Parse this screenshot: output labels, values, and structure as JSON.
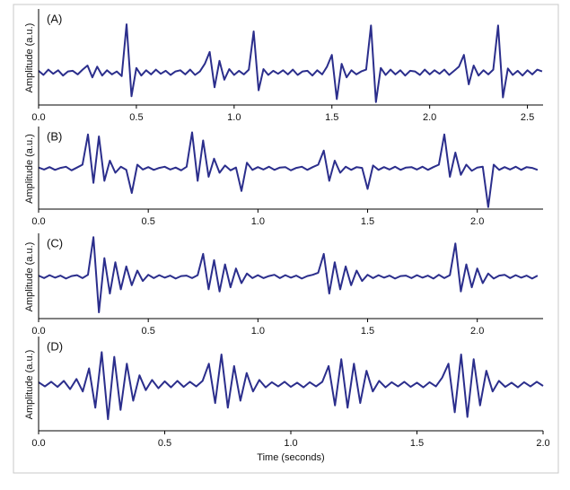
{
  "chart_data": [
    {
      "type": "line",
      "title": "(A)",
      "ylabel": "Amplitude (a.u.)",
      "color": "#2b2e8c",
      "xlim": [
        0,
        2.58
      ],
      "ylim": [
        -0.55,
        1.05
      ],
      "xticks": [
        {
          "value": 0,
          "label": "0.0"
        },
        0.5,
        {
          "value": 1,
          "label": "1.0"
        },
        1.5,
        {
          "value": 2,
          "label": "2.0"
        },
        2.5
      ],
      "x": [
        0,
        0.025,
        0.05,
        0.075,
        0.1,
        0.125,
        0.15,
        0.175,
        0.2,
        0.225,
        0.25,
        0.275,
        0.3,
        0.325,
        0.35,
        0.375,
        0.4,
        0.425,
        0.45,
        0.475,
        0.5,
        0.525,
        0.55,
        0.575,
        0.6,
        0.625,
        0.65,
        0.675,
        0.7,
        0.725,
        0.75,
        0.775,
        0.8,
        0.825,
        0.85,
        0.875,
        0.9,
        0.925,
        0.95,
        0.975,
        1,
        1.025,
        1.05,
        1.075,
        1.1,
        1.125,
        1.15,
        1.175,
        1.2,
        1.225,
        1.25,
        1.275,
        1.3,
        1.325,
        1.35,
        1.375,
        1.4,
        1.425,
        1.45,
        1.475,
        1.5,
        1.525,
        1.55,
        1.575,
        1.6,
        1.625,
        1.65,
        1.675,
        1.7,
        1.725,
        1.75,
        1.775,
        1.8,
        1.825,
        1.85,
        1.875,
        1.9,
        1.925,
        1.95,
        1.975,
        2,
        2.025,
        2.05,
        2.075,
        2.1,
        2.125,
        2.15,
        2.175,
        2.2,
        2.225,
        2.25,
        2.275,
        2.3,
        2.325,
        2.35,
        2.375,
        2.4,
        2.425,
        2.45,
        2.475,
        2.5,
        2.525,
        2.55,
        2.575
      ],
      "values": [
        0.03,
        -0.04,
        0.05,
        -0.02,
        0.04,
        -0.05,
        0.02,
        0.03,
        -0.03,
        0.05,
        0.12,
        -0.08,
        0.1,
        -0.05,
        0.04,
        -0.03,
        0.02,
        -0.06,
        0.82,
        -0.4,
        0.08,
        -0.05,
        0.04,
        -0.03,
        0.05,
        -0.02,
        0.03,
        -0.04,
        0.02,
        0.04,
        -0.03,
        0.05,
        -0.04,
        0.02,
        0.15,
        0.35,
        -0.25,
        0.2,
        -0.12,
        0.06,
        -0.04,
        0.03,
        -0.03,
        0.05,
        0.7,
        -0.3,
        0.06,
        -0.04,
        0.03,
        -0.02,
        0.04,
        -0.03,
        0.05,
        -0.04,
        0.02,
        0.03,
        -0.05,
        0.04,
        -0.03,
        0.1,
        0.3,
        -0.45,
        0.15,
        -0.08,
        0.04,
        -0.03,
        0.02,
        0.05,
        0.8,
        -0.5,
        0.08,
        -0.04,
        0.05,
        -0.03,
        0.04,
        -0.05,
        0.03,
        0.02,
        -0.04,
        0.05,
        -0.03,
        0.04,
        -0.02,
        0.05,
        -0.04,
        0.03,
        0.1,
        0.3,
        -0.2,
        0.12,
        -0.05,
        0.04,
        -0.03,
        0.05,
        0.8,
        -0.42,
        0.07,
        -0.04,
        0.03,
        -0.05,
        0.04,
        -0.03,
        0.05,
        0.02
      ]
    },
    {
      "type": "line",
      "title": "(B)",
      "ylabel": "Amplitude (a.u.)",
      "color": "#2b2e8c",
      "xlim": [
        0,
        2.3
      ],
      "ylim": [
        -1,
        1
      ],
      "xticks": [
        {
          "value": 0,
          "label": "0.0"
        },
        0.5,
        {
          "value": 1,
          "label": "1.0"
        },
        1.5,
        {
          "value": 2,
          "label": "2.0"
        }
      ],
      "x": [
        0,
        0.025,
        0.05,
        0.075,
        0.1,
        0.125,
        0.15,
        0.175,
        0.2,
        0.225,
        0.25,
        0.275,
        0.3,
        0.325,
        0.35,
        0.375,
        0.4,
        0.425,
        0.45,
        0.475,
        0.5,
        0.525,
        0.55,
        0.575,
        0.6,
        0.625,
        0.65,
        0.675,
        0.7,
        0.725,
        0.75,
        0.775,
        0.8,
        0.825,
        0.85,
        0.875,
        0.9,
        0.925,
        0.95,
        0.975,
        1,
        1.025,
        1.05,
        1.075,
        1.1,
        1.125,
        1.15,
        1.175,
        1.2,
        1.225,
        1.25,
        1.275,
        1.3,
        1.325,
        1.35,
        1.375,
        1.4,
        1.425,
        1.45,
        1.475,
        1.5,
        1.525,
        1.55,
        1.575,
        1.6,
        1.625,
        1.65,
        1.675,
        1.7,
        1.725,
        1.75,
        1.775,
        1.8,
        1.825,
        1.85,
        1.875,
        1.9,
        1.925,
        1.95,
        1.975,
        2,
        2.025,
        2.05,
        2.075,
        2.1,
        2.125,
        2.15,
        2.175,
        2.2,
        2.225,
        2.25,
        2.275
      ],
      "values": [
        0.03,
        -0.02,
        0.04,
        -0.03,
        0.02,
        0.05,
        -0.04,
        0.03,
        0.1,
        0.85,
        -0.35,
        0.8,
        -0.3,
        0.2,
        -0.1,
        0.05,
        -0.03,
        -0.6,
        0.1,
        -0.02,
        0.04,
        -0.03,
        0.02,
        0.05,
        -0.02,
        0.03,
        -0.04,
        0.05,
        0.9,
        -0.3,
        0.7,
        -0.2,
        0.25,
        -0.1,
        0.08,
        -0.04,
        0.03,
        -0.55,
        0.15,
        -0.03,
        0.04,
        -0.02,
        0.05,
        -0.03,
        0.03,
        0.04,
        -0.04,
        0.02,
        0.05,
        -0.03,
        0.04,
        0.1,
        0.45,
        -0.3,
        0.2,
        -0.1,
        0.05,
        -0.03,
        0.04,
        0.02,
        -0.5,
        0.08,
        -0.03,
        0.04,
        -0.02,
        0.05,
        -0.03,
        0.03,
        0.04,
        -0.02,
        0.05,
        -0.03,
        0.04,
        0.1,
        0.85,
        -0.2,
        0.4,
        -0.15,
        0.1,
        -0.05,
        0.03,
        0.05,
        -0.95,
        0.1,
        -0.03,
        0.04,
        -0.02,
        0.05,
        -0.03,
        0.04,
        0.02,
        -0.03
      ]
    },
    {
      "type": "line",
      "title": "(C)",
      "ylabel": "Amplitude (a.u.)",
      "color": "#2b2e8c",
      "xlim": [
        0,
        2.3
      ],
      "ylim": [
        -1,
        1
      ],
      "xticks": [
        {
          "value": 0,
          "label": "0.0"
        },
        0.5,
        {
          "value": 1,
          "label": "1.0"
        },
        1.5,
        {
          "value": 2,
          "label": "2.0"
        }
      ],
      "x": [
        0,
        0.025,
        0.05,
        0.075,
        0.1,
        0.125,
        0.15,
        0.175,
        0.2,
        0.225,
        0.25,
        0.275,
        0.3,
        0.325,
        0.35,
        0.375,
        0.4,
        0.425,
        0.45,
        0.475,
        0.5,
        0.525,
        0.55,
        0.575,
        0.6,
        0.625,
        0.65,
        0.675,
        0.7,
        0.725,
        0.75,
        0.775,
        0.8,
        0.825,
        0.85,
        0.875,
        0.9,
        0.925,
        0.95,
        0.975,
        1,
        1.025,
        1.05,
        1.075,
        1.1,
        1.125,
        1.15,
        1.175,
        1.2,
        1.225,
        1.25,
        1.275,
        1.3,
        1.325,
        1.35,
        1.375,
        1.4,
        1.425,
        1.45,
        1.475,
        1.5,
        1.525,
        1.55,
        1.575,
        1.6,
        1.625,
        1.65,
        1.675,
        1.7,
        1.725,
        1.75,
        1.775,
        1.8,
        1.825,
        1.85,
        1.875,
        1.9,
        1.925,
        1.95,
        1.975,
        2,
        2.025,
        2.05,
        2.075,
        2.1,
        2.125,
        2.15,
        2.175,
        2.2,
        2.225,
        2.25,
        2.275
      ],
      "values": [
        0.03,
        -0.03,
        0.04,
        -0.02,
        0.03,
        -0.04,
        0.02,
        0.04,
        -0.03,
        0.05,
        0.95,
        -0.85,
        0.45,
        -0.4,
        0.35,
        -0.3,
        0.25,
        -0.2,
        0.15,
        -0.1,
        0.05,
        -0.03,
        0.04,
        -0.02,
        0.03,
        -0.04,
        0.02,
        0.03,
        -0.03,
        0.04,
        0.55,
        -0.3,
        0.4,
        -0.35,
        0.3,
        -0.25,
        0.2,
        -0.15,
        0.08,
        -0.03,
        0.04,
        -0.03,
        0.02,
        0.05,
        -0.03,
        0.04,
        -0.02,
        0.03,
        -0.04,
        0.02,
        0.05,
        0.1,
        0.55,
        -0.4,
        0.35,
        -0.3,
        0.25,
        -0.2,
        0.15,
        -0.1,
        0.05,
        -0.03,
        0.04,
        -0.02,
        0.03,
        -0.04,
        0.02,
        0.03,
        -0.03,
        0.04,
        -0.02,
        0.03,
        -0.04,
        0.05,
        -0.03,
        0.04,
        0.8,
        -0.35,
        0.3,
        -0.25,
        0.2,
        -0.15,
        0.08,
        -0.04,
        0.03,
        0.05,
        -0.03,
        0.04,
        -0.02,
        0.03,
        -0.04,
        0.03
      ]
    },
    {
      "type": "line",
      "title": "(D)",
      "ylabel": "Amplitude (a.u.)",
      "xlabel": "Time (seconds)",
      "color": "#2b2e8c",
      "xlim": [
        0,
        2.0
      ],
      "ylim": [
        -1,
        1
      ],
      "xticks": [
        {
          "value": 0,
          "label": "0.0"
        },
        0.5,
        {
          "value": 1,
          "label": "1.0"
        },
        1.5,
        {
          "value": 2,
          "label": "2.0"
        }
      ],
      "x": [
        0,
        0.025,
        0.05,
        0.075,
        0.1,
        0.125,
        0.15,
        0.175,
        0.2,
        0.225,
        0.25,
        0.275,
        0.3,
        0.325,
        0.35,
        0.375,
        0.4,
        0.425,
        0.45,
        0.475,
        0.5,
        0.525,
        0.55,
        0.575,
        0.6,
        0.625,
        0.65,
        0.675,
        0.7,
        0.725,
        0.75,
        0.775,
        0.8,
        0.825,
        0.85,
        0.875,
        0.9,
        0.925,
        0.95,
        0.975,
        1,
        1.025,
        1.05,
        1.075,
        1.1,
        1.125,
        1.15,
        1.175,
        1.2,
        1.225,
        1.25,
        1.275,
        1.3,
        1.325,
        1.35,
        1.375,
        1.4,
        1.425,
        1.45,
        1.475,
        1.5,
        1.525,
        1.55,
        1.575,
        1.6,
        1.625,
        1.65,
        1.675,
        1.7,
        1.725,
        1.75,
        1.775,
        1.8,
        1.825,
        1.85,
        1.875,
        1.9,
        1.925,
        1.95,
        1.975,
        2
      ],
      "values": [
        0.05,
        -0.04,
        0.06,
        -0.05,
        0.08,
        -0.1,
        0.12,
        -0.15,
        0.35,
        -0.5,
        0.7,
        -0.75,
        0.6,
        -0.55,
        0.45,
        -0.35,
        0.2,
        -0.12,
        0.1,
        -0.08,
        0.07,
        -0.06,
        0.08,
        -0.05,
        0.06,
        -0.04,
        0.08,
        0.45,
        -0.4,
        0.65,
        -0.5,
        0.4,
        -0.35,
        0.25,
        -0.15,
        0.1,
        -0.06,
        0.05,
        -0.04,
        0.06,
        -0.05,
        0.04,
        -0.06,
        0.05,
        -0.04,
        0.06,
        0.4,
        -0.45,
        0.55,
        -0.5,
        0.45,
        -0.4,
        0.3,
        -0.15,
        0.08,
        -0.06,
        0.05,
        -0.04,
        0.06,
        -0.05,
        0.04,
        -0.06,
        0.05,
        -0.04,
        0.15,
        0.45,
        -0.6,
        0.65,
        -0.7,
        0.55,
        -0.45,
        0.3,
        -0.15,
        0.08,
        -0.05,
        0.04,
        -0.06,
        0.05,
        -0.04,
        0.06,
        -0.03
      ]
    }
  ]
}
